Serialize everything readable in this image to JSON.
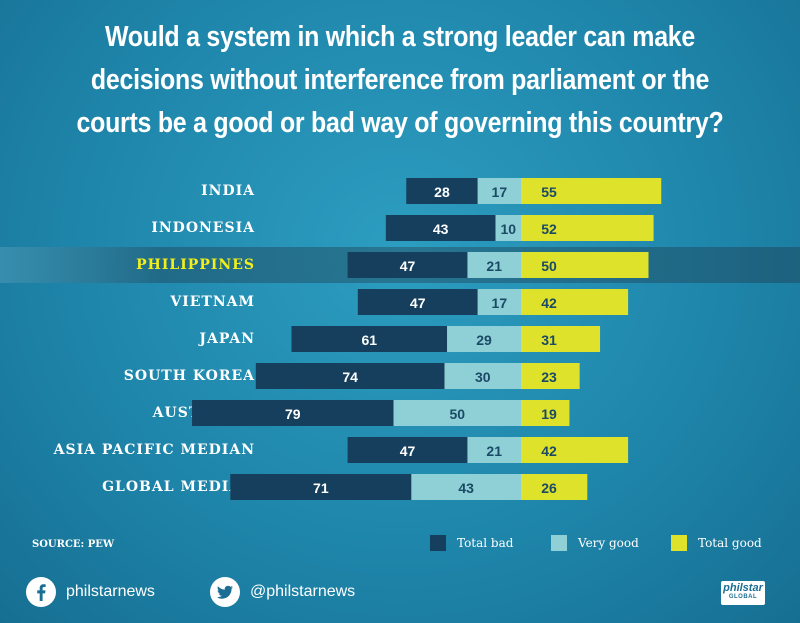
{
  "title": "Would a system in which a strong leader can make decisions without interference from parliament or the courts be a good or bad way of governing this country?",
  "source": "SOURCE: PEW",
  "colors": {
    "total_bad": "#163f5e",
    "very_good": "#8fd0d6",
    "total_good": "#dfe22a",
    "highlight_label": "#f2ef1a"
  },
  "legend": [
    {
      "label": "Total bad",
      "color": "#163f5e"
    },
    {
      "label": "Very good",
      "color": "#8fd0d6"
    },
    {
      "label": "Total good",
      "color": "#dfe22a"
    }
  ],
  "social": {
    "facebook_icon": "facebook-icon",
    "facebook_label": "philstarnews",
    "twitter_icon": "twitter-icon",
    "twitter_label": "@philstarnews"
  },
  "logo": {
    "main": "philstar",
    "sub": "GLOBAL"
  },
  "chart_data": {
    "type": "bar",
    "categories": [
      "INDIA",
      "INDONESIA",
      "PHILIPPINES",
      "VIETNAM",
      "JAPAN",
      "SOUTH KOREA",
      "AUSTRALIA",
      "ASIA PACIFIC MEDIAN",
      "GLOBAL MEDIAN"
    ],
    "highlighted_category": "PHILIPPINES",
    "series": [
      {
        "name": "Total bad",
        "values": [
          28,
          43,
          47,
          47,
          61,
          74,
          79,
          47,
          71
        ]
      },
      {
        "name": "Very good",
        "values": [
          17,
          10,
          21,
          17,
          29,
          30,
          50,
          21,
          43
        ]
      },
      {
        "name": "Total good",
        "values": [
          55,
          52,
          50,
          42,
          31,
          23,
          19,
          42,
          26
        ]
      }
    ]
  }
}
